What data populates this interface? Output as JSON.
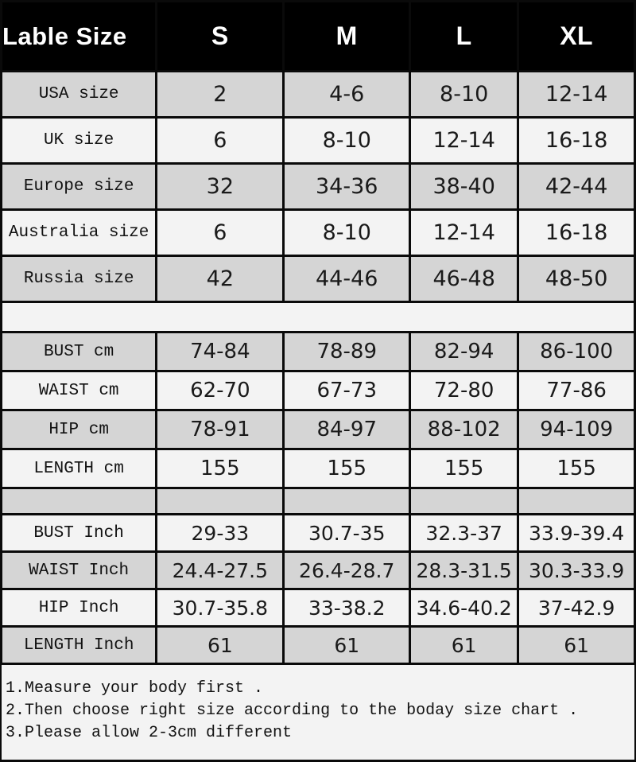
{
  "table": {
    "header": {
      "label": "Lable Size",
      "columns": [
        "S",
        "M",
        "L",
        "XL"
      ]
    },
    "sections": [
      {
        "name": "international-sizes",
        "rows": [
          {
            "label": "USA size",
            "values": [
              "2",
              "4-6",
              "8-10",
              "12-14"
            ]
          },
          {
            "label": "UK size",
            "values": [
              "6",
              "8-10",
              "12-14",
              "16-18"
            ]
          },
          {
            "label": "Europe size",
            "values": [
              "32",
              "34-36",
              "38-40",
              "42-44"
            ]
          },
          {
            "label": "Australia size",
            "values": [
              "6",
              "8-10",
              "12-14",
              "16-18"
            ]
          },
          {
            "label": "Russia size",
            "values": [
              "42",
              "44-46",
              "46-48",
              "48-50"
            ]
          }
        ]
      },
      {
        "name": "cm-measurements",
        "rows": [
          {
            "label": "BUST cm",
            "values": [
              "74-84",
              "78-89",
              "82-94",
              "86-100"
            ]
          },
          {
            "label": "WAIST cm",
            "values": [
              "62-70",
              "67-73",
              "72-80",
              "77-86"
            ]
          },
          {
            "label": "HIP cm",
            "values": [
              "78-91",
              "84-97",
              "88-102",
              "94-109"
            ]
          },
          {
            "label": "LENGTH cm",
            "values": [
              "155",
              "155",
              "155",
              "155"
            ]
          }
        ]
      },
      {
        "name": "inch-measurements",
        "rows": [
          {
            "label": "BUST Inch",
            "values": [
              "29-33",
              "30.7-35",
              "32.3-37",
              "33.9-39.4"
            ]
          },
          {
            "label": "WAIST Inch",
            "values": [
              "24.4-27.5",
              "26.4-28.7",
              "28.3-31.5",
              "30.3-33.9"
            ]
          },
          {
            "label": "HIP Inch",
            "values": [
              "30.7-35.8",
              "33-38.2",
              "34.6-40.2",
              "37-42.9"
            ]
          },
          {
            "label": "LENGTH Inch",
            "values": [
              "61",
              "61",
              "61",
              "61"
            ]
          }
        ]
      }
    ]
  },
  "notes": [
    "1.Measure your body first .",
    "2.Then choose right size according to the boday size chart .",
    "3.Please allow 2-3cm different"
  ],
  "colors": {
    "header_bg": "#000000",
    "row_gray": "#d5d5d5",
    "row_light": "#f3f3f3",
    "border": "#0a0a0a"
  }
}
